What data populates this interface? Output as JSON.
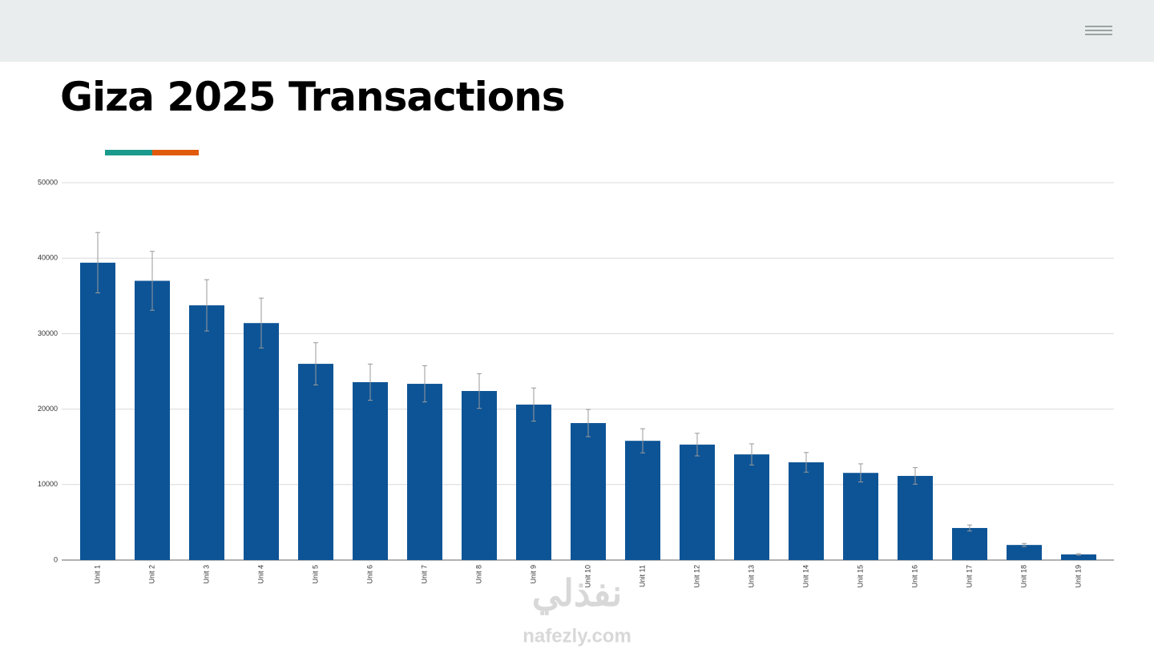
{
  "header": {
    "title": "Giza 2025 Transactions"
  },
  "chart_data": {
    "type": "bar",
    "categories": [
      "Unit 1",
      "Unit 2",
      "Unit 3",
      "Unit 4",
      "Unit 5",
      "Unit 6",
      "Unit 7",
      "Unit 8",
      "Unit 9",
      "Unit 10",
      "Unit 11",
      "Unit 12",
      "Unit 13",
      "Unit 14",
      "Unit 15",
      "Unit 16",
      "Unit 17",
      "Unit 18",
      "Unit 19"
    ],
    "values": [
      39400,
      37000,
      33750,
      31400,
      26000,
      23570,
      23350,
      22400,
      20600,
      18150,
      15800,
      15300,
      14000,
      12950,
      11550,
      11150,
      4250,
      2000,
      750
    ],
    "errors": [
      4000,
      3900,
      3400,
      3300,
      2800,
      2400,
      2400,
      2300,
      2200,
      1800,
      1600,
      1500,
      1400,
      1300,
      1200,
      1100,
      400,
      200,
      100
    ],
    "color": "#0d5496",
    "ylim": [
      0,
      50000
    ],
    "yticks": [
      0,
      10000,
      20000,
      30000,
      40000,
      50000
    ],
    "grid": true
  },
  "watermark": {
    "arabic": "نفذلي",
    "latin": "nafezly.com"
  }
}
